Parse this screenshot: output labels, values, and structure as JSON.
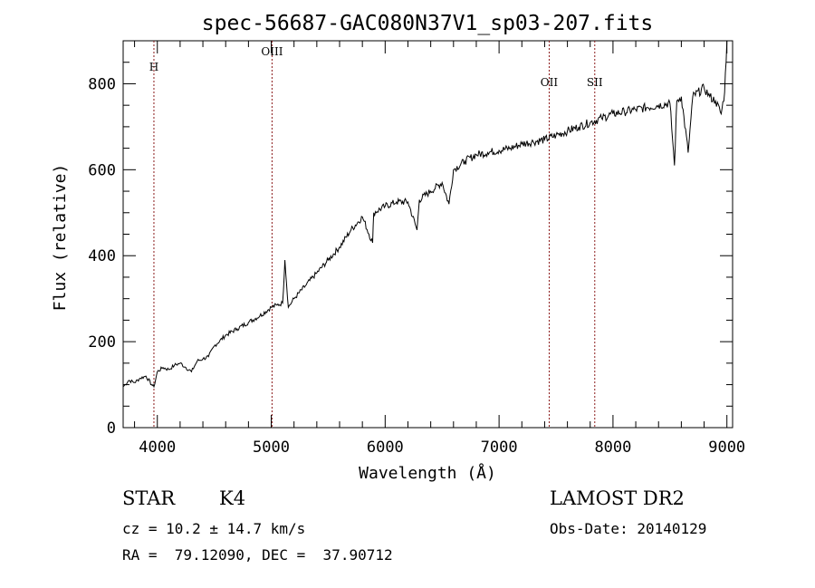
{
  "chart_data": {
    "type": "line",
    "title": "spec-56687-GAC080N37V1_sp03-207.fits",
    "xlabel": "Wavelength (Å)",
    "ylabel": "Flux (relative)",
    "xlim": [
      3700,
      9050
    ],
    "ylim": [
      0,
      900
    ],
    "x_ticks": [
      4000,
      5000,
      6000,
      7000,
      8000,
      9000
    ],
    "y_ticks": [
      0,
      200,
      400,
      600,
      800
    ],
    "grid": false,
    "line_color": "#000000",
    "marker_color": "#8b1a1a",
    "line_markers": [
      {
        "label": "H",
        "x": 3970
      },
      {
        "label": "OIII",
        "x": 5007
      },
      {
        "label": "OII",
        "x": 7440
      },
      {
        "label": "SII",
        "x": 7840
      }
    ],
    "series": [
      {
        "x": [
          3700,
          3750,
          3800,
          3850,
          3900,
          3950,
          3970,
          4000,
          4050,
          4100,
          4150,
          4200,
          4250,
          4300,
          4350,
          4400,
          4450,
          4500,
          4600,
          4700,
          4800,
          4900,
          5000,
          5050,
          5100,
          5120,
          5150,
          5200,
          5300,
          5400,
          5500,
          5600,
          5700,
          5800,
          5890,
          5900,
          6000,
          6100,
          6200,
          6280,
          6300,
          6400,
          6500,
          6560,
          6600,
          6700,
          6800,
          6900,
          7000,
          7100,
          7200,
          7300,
          7400,
          7500,
          7600,
          7700,
          7800,
          7900,
          8000,
          8100,
          8200,
          8300,
          8400,
          8500,
          8540,
          8560,
          8600,
          8660,
          8700,
          8800,
          8850,
          8900,
          8950,
          8980,
          9000
        ],
        "values": [
          95,
          110,
          105,
          115,
          120,
          100,
          95,
          130,
          140,
          135,
          145,
          150,
          140,
          130,
          155,
          160,
          165,
          190,
          215,
          230,
          245,
          260,
          280,
          285,
          290,
          390,
          280,
          300,
          330,
          360,
          390,
          420,
          460,
          490,
          430,
          500,
          515,
          525,
          525,
          460,
          530,
          550,
          570,
          520,
          600,
          620,
          635,
          640,
          645,
          650,
          660,
          665,
          670,
          680,
          690,
          700,
          710,
          720,
          730,
          735,
          740,
          745,
          750,
          755,
          610,
          760,
          770,
          640,
          770,
          790,
          770,
          760,
          730,
          780,
          900
        ]
      }
    ]
  },
  "info": {
    "object_class": "STAR",
    "subclass": "K4",
    "survey": "LAMOST DR2",
    "redshift_line": "cz = 10.2 ± 14.7 km/s",
    "obs_date_line": "Obs-Date: 20140129",
    "coords_line": "RA =  79.12090, DEC =  37.90712"
  }
}
